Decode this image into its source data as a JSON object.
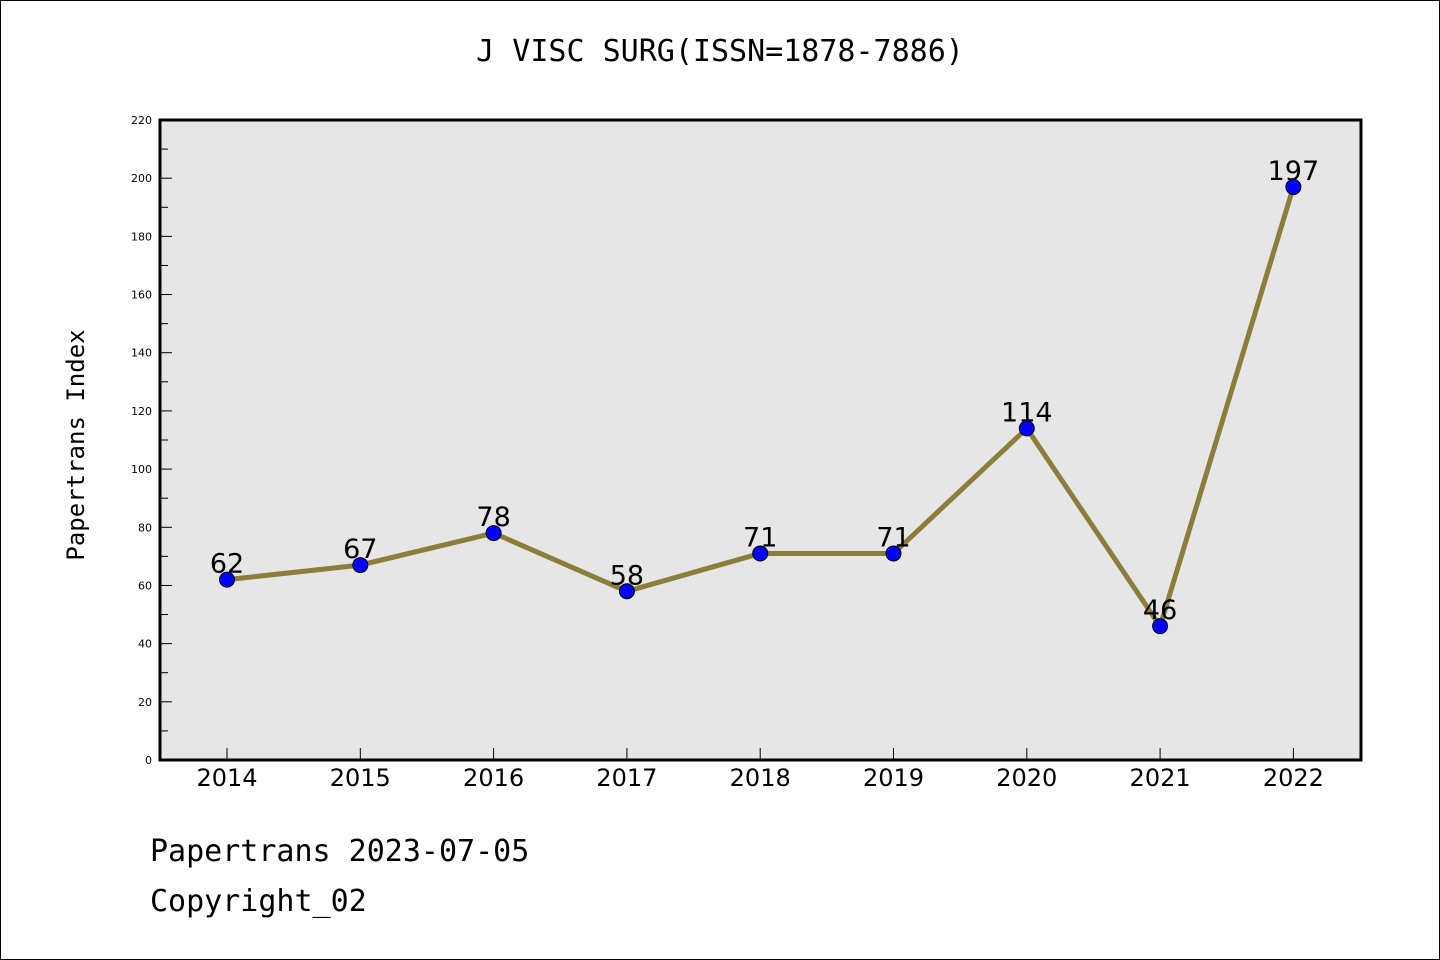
{
  "chart_data": {
    "type": "line",
    "title": "J VISC SURG(ISSN=1878-7886)",
    "xlabel": "",
    "ylabel": "Papertrans Index",
    "categories": [
      "2014",
      "2015",
      "2016",
      "2017",
      "2018",
      "2019",
      "2020",
      "2021",
      "2022"
    ],
    "series": [
      {
        "values": [
          62,
          67,
          78,
          58,
          71,
          71,
          114,
          46,
          197
        ]
      }
    ],
    "data_labels": [
      "62",
      "67",
      "78",
      "58",
      "71",
      "71",
      "114",
      "46",
      "197"
    ],
    "ylim": [
      0,
      220
    ],
    "yticks": [
      "0",
      "20",
      "40",
      "60",
      "80",
      "100",
      "120",
      "140",
      "160",
      "180",
      "200",
      "220"
    ],
    "grid": false,
    "colors": {
      "line": "#8b7d3a",
      "marker": "#0000ff",
      "plot_bg": "#e6e6e6"
    }
  },
  "footer": {
    "line1": "Papertrans 2023-07-05",
    "line2": "Copyright_02"
  }
}
